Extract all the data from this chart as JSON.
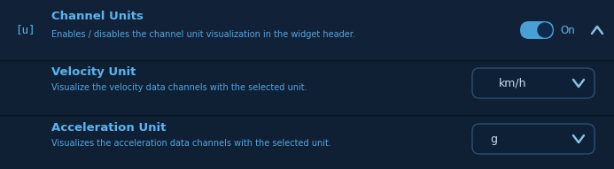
{
  "bg_color": "#0f2035",
  "section1_bg": "#112238",
  "section23_bg": "#0c1b2e",
  "divider_color": "#0a1625",
  "title_color": "#5ab4f0",
  "subtitle_color": "#5ab4f0",
  "icon_color": "#5ab4f0",
  "toggle_bg_on": "#4a9fd4",
  "toggle_knob": "#123456",
  "on_text": "On",
  "on_text_color": "#5ab4f0",
  "arrow_color": "#8abfe0",
  "dropdown_border": "#2a5070",
  "dropdown_bg": "#0d2035",
  "dropdown_text_color": "#c5dff5",
  "section1_title": "Channel Units",
  "section1_subtitle": "Enables / disables the channel unit visualization in the widget header.",
  "section2_title": "Velocity Unit",
  "section2_subtitle": "Visualize the velocity data channels with the selected unit.",
  "section2_dropdown": "km/h",
  "section3_title": "Acceleration Unit",
  "section3_subtitle": "Visualizes the acceleration data channels with the selected unit.",
  "section3_dropdown": "g",
  "figwidth": 6.93,
  "figheight": 1.91,
  "dpi": 100
}
